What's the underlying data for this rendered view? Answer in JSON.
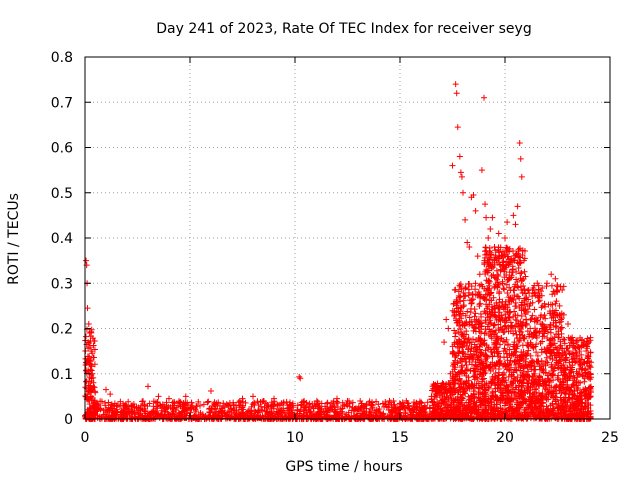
{
  "chart_data": {
    "type": "scatter",
    "title": "Day 241 of 2023, Rate Of TEC Index for receiver seyg",
    "xlabel": "GPS time / hours",
    "ylabel": "ROTI / TECUs",
    "xlim": [
      0,
      25
    ],
    "ylim": [
      0,
      0.8
    ],
    "xticks": [
      0,
      5,
      10,
      15,
      20,
      25
    ],
    "yticks": [
      0,
      0.1,
      0.2,
      0.3,
      0.4,
      0.5,
      0.6,
      0.7,
      0.8
    ],
    "ytick_labels": [
      "0",
      "0.1",
      "0.2",
      "0.3",
      "0.4",
      "0.5",
      "0.6",
      "0.7",
      "0.8"
    ],
    "grid": true,
    "marker": "plus",
    "color": "#ff0000",
    "series": [
      {
        "points": [
          [
            0.05,
            0.35
          ],
          [
            0.08,
            0.34
          ],
          [
            0.1,
            0.3
          ],
          [
            0.12,
            0.245
          ],
          [
            0.18,
            0.21
          ],
          [
            0.22,
            0.19
          ],
          [
            0.15,
            0.17
          ],
          [
            0.3,
            0.15
          ],
          [
            0.28,
            0.13
          ],
          [
            0.35,
            0.1
          ],
          [
            0.4,
            0.08
          ],
          [
            0.45,
            0.07
          ],
          [
            1.0,
            0.065
          ],
          [
            1.2,
            0.055
          ],
          [
            3.0,
            0.072
          ],
          [
            3.5,
            0.05
          ],
          [
            4.0,
            0.045
          ],
          [
            4.8,
            0.05
          ],
          [
            6.0,
            0.062
          ],
          [
            7.5,
            0.045
          ],
          [
            8.0,
            0.05
          ],
          [
            9.0,
            0.045
          ],
          [
            10.2,
            0.093
          ],
          [
            10.25,
            0.09
          ],
          [
            12.0,
            0.045
          ],
          [
            12.5,
            0.04
          ],
          [
            14.5,
            0.04
          ],
          [
            15.3,
            0.04
          ],
          [
            16.5,
            0.05
          ],
          [
            17.0,
            0.07
          ],
          [
            17.1,
            0.17
          ],
          [
            17.2,
            0.22
          ],
          [
            17.3,
            0.2
          ],
          [
            17.4,
            0.1
          ],
          [
            17.5,
            0.56
          ],
          [
            17.65,
            0.74
          ],
          [
            17.7,
            0.72
          ],
          [
            17.75,
            0.645
          ],
          [
            17.85,
            0.58
          ],
          [
            17.9,
            0.545
          ],
          [
            17.95,
            0.535
          ],
          [
            18.0,
            0.5
          ],
          [
            18.1,
            0.44
          ],
          [
            18.2,
            0.39
          ],
          [
            18.3,
            0.38
          ],
          [
            18.4,
            0.49
          ],
          [
            18.5,
            0.495
          ],
          [
            18.6,
            0.46
          ],
          [
            18.7,
            0.36
          ],
          [
            18.8,
            0.32
          ],
          [
            18.9,
            0.55
          ],
          [
            19.0,
            0.71
          ],
          [
            19.05,
            0.475
          ],
          [
            19.1,
            0.445
          ],
          [
            19.2,
            0.4
          ],
          [
            19.3,
            0.42
          ],
          [
            19.4,
            0.445
          ],
          [
            19.5,
            0.38
          ],
          [
            19.6,
            0.35
          ],
          [
            19.7,
            0.41
          ],
          [
            19.8,
            0.33
          ],
          [
            19.9,
            0.37
          ],
          [
            20.0,
            0.4
          ],
          [
            20.1,
            0.435
          ],
          [
            20.2,
            0.37
          ],
          [
            20.3,
            0.355
          ],
          [
            20.4,
            0.45
          ],
          [
            20.5,
            0.43
          ],
          [
            20.6,
            0.47
          ],
          [
            20.7,
            0.61
          ],
          [
            20.75,
            0.575
          ],
          [
            20.8,
            0.535
          ],
          [
            20.9,
            0.35
          ],
          [
            21.0,
            0.22
          ],
          [
            21.2,
            0.2
          ],
          [
            21.4,
            0.19
          ],
          [
            21.6,
            0.26
          ],
          [
            21.8,
            0.25
          ],
          [
            22.0,
            0.3
          ],
          [
            22.2,
            0.32
          ],
          [
            22.4,
            0.31
          ],
          [
            22.6,
            0.25
          ],
          [
            22.8,
            0.23
          ],
          [
            23.0,
            0.21
          ],
          [
            23.2,
            0.18
          ],
          [
            23.4,
            0.17
          ],
          [
            23.6,
            0.12
          ],
          [
            23.8,
            0.09
          ],
          [
            24.0,
            0.1
          ],
          [
            24.05,
            0.07
          ]
        ]
      }
    ]
  }
}
